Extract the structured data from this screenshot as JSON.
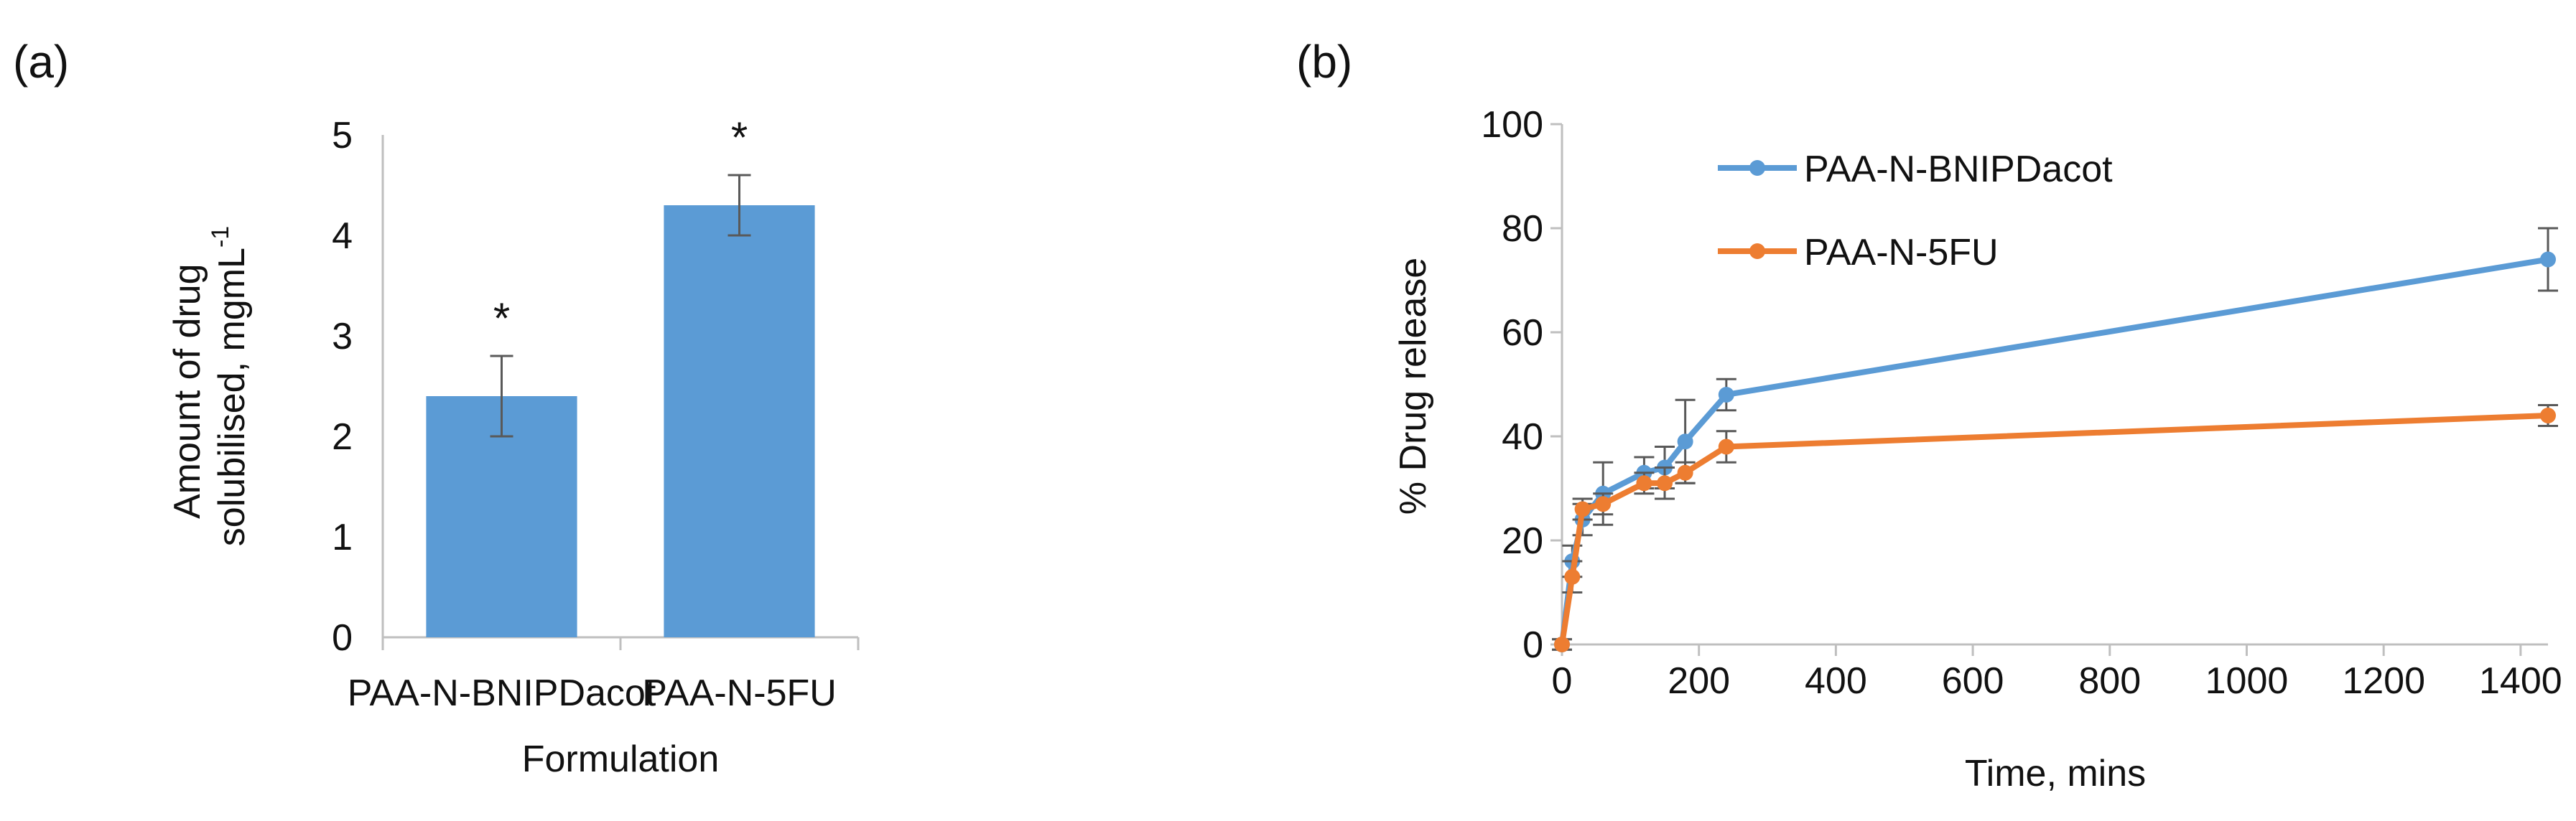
{
  "panels": {
    "a_label": "(a)",
    "b_label": "(b)"
  },
  "chart_data": [
    {
      "type": "bar",
      "panel": "(a)",
      "title": "",
      "xlabel": "Formulation",
      "ylabel_line1": "Amount of drug",
      "ylabel_line2": "solubilised, mgmL",
      "ylabel_superscript": "-1",
      "ylim": [
        0,
        5
      ],
      "yticks": [
        0,
        1,
        2,
        3,
        4,
        5
      ],
      "grid": false,
      "categories": [
        "PAA-N-BNIPDacot",
        "PAA-N-5FU"
      ],
      "values": [
        2.4,
        4.3
      ],
      "errors": [
        0.4,
        0.3
      ],
      "annotations": [
        "*",
        "*"
      ],
      "bar_color": "#5B9BD5"
    },
    {
      "type": "line",
      "panel": "(b)",
      "title": "",
      "xlabel": "Time, mins",
      "ylabel": "% Drug release",
      "xlim": [
        0,
        1440
      ],
      "ylim": [
        0,
        100
      ],
      "xticks": [
        0,
        200,
        400,
        600,
        800,
        1000,
        1200,
        1400
      ],
      "yticks": [
        0,
        20,
        40,
        60,
        80,
        100
      ],
      "grid": false,
      "legend_position": "top-left",
      "series": [
        {
          "name": "PAA-N-BNIPDacot",
          "color": "#5B9BD5",
          "x": [
            0,
            15,
            30,
            60,
            120,
            150,
            180,
            240,
            1440
          ],
          "y": [
            0,
            16,
            24,
            29,
            33,
            34,
            39,
            48,
            74
          ],
          "err": [
            1,
            3,
            3,
            6,
            3,
            4,
            8,
            3,
            6
          ]
        },
        {
          "name": "PAA-N-5FU",
          "color": "#ED7D31",
          "x": [
            0,
            15,
            30,
            60,
            120,
            150,
            180,
            240,
            1440
          ],
          "y": [
            0,
            13,
            26,
            27,
            31,
            31,
            33,
            38,
            44
          ],
          "err": [
            1,
            3,
            2,
            2,
            2,
            3,
            2,
            3,
            2
          ]
        }
      ]
    }
  ]
}
